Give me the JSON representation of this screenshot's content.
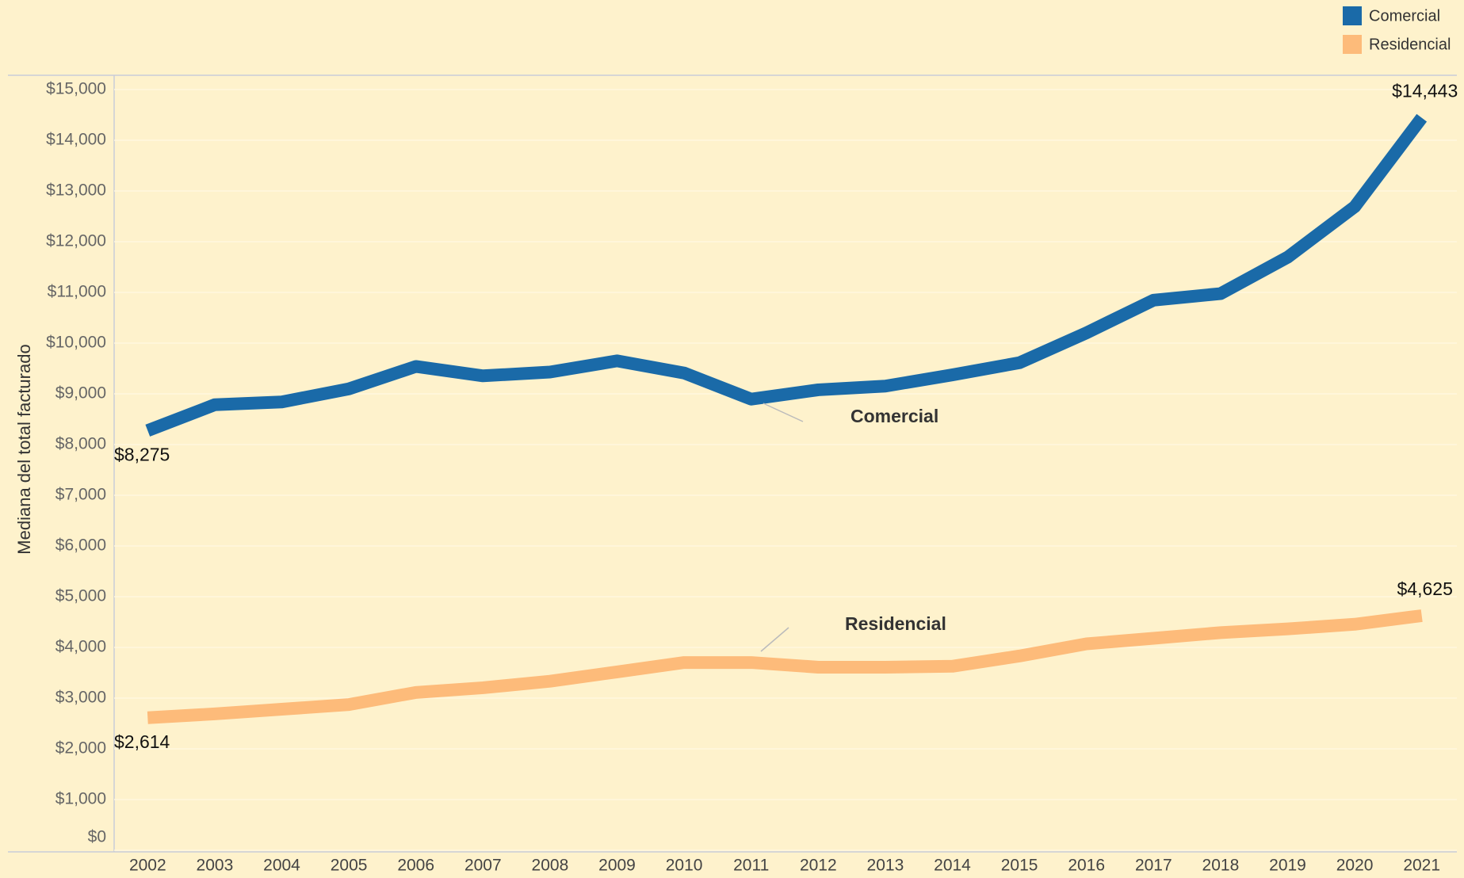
{
  "chart_data": {
    "type": "line",
    "y_label": "Mediana del total facturado",
    "categories": [
      "2002",
      "2003",
      "2004",
      "2005",
      "2006",
      "2007",
      "2008",
      "2009",
      "2010",
      "2011",
      "2012",
      "2013",
      "2014",
      "2015",
      "2016",
      "2017",
      "2018",
      "2019",
      "2020",
      "2021"
    ],
    "series": [
      {
        "name": "Comercial",
        "color": "#1a6aa8",
        "values": [
          8275,
          8785,
          8840,
          9098,
          9540,
          9355,
          9429,
          9650,
          9411,
          8895,
          9079,
          9153,
          9374,
          9613,
          10203,
          10847,
          10976,
          11694,
          12689,
          14443
        ],
        "value_labels": [
          "$8,275",
          null,
          null,
          null,
          null,
          null,
          null,
          null,
          null,
          null,
          null,
          null,
          null,
          null,
          null,
          null,
          null,
          null,
          null,
          "$14,443"
        ]
      },
      {
        "name": "Residencial",
        "color": "#fdbb7a",
        "values": [
          2614,
          2689,
          2781,
          2873,
          3112,
          3204,
          3333,
          3517,
          3702,
          3702,
          3610,
          3610,
          3628,
          3831,
          4070,
          4180,
          4291,
          4365,
          4457,
          4625
        ],
        "value_labels": [
          "$2,614",
          null,
          null,
          null,
          null,
          null,
          null,
          null,
          null,
          null,
          null,
          null,
          null,
          null,
          null,
          null,
          null,
          null,
          null,
          "$4,625"
        ]
      }
    ],
    "ylim": [
      0,
      15000
    ],
    "yticks": [
      {
        "value": 0,
        "label": "$0"
      },
      {
        "value": 1000,
        "label": "$1,000"
      },
      {
        "value": 2000,
        "label": "$2,000"
      },
      {
        "value": 3000,
        "label": "$3,000"
      },
      {
        "value": 4000,
        "label": "$4,000"
      },
      {
        "value": 5000,
        "label": "$5,000"
      },
      {
        "value": 6000,
        "label": "$6,000"
      },
      {
        "value": 7000,
        "label": "$7,000"
      },
      {
        "value": 8000,
        "label": "$8,000"
      },
      {
        "value": 9000,
        "label": "$9,000"
      },
      {
        "value": 10000,
        "label": "$10,000"
      },
      {
        "value": 11000,
        "label": "$11,000"
      },
      {
        "value": 12000,
        "label": "$12,000"
      },
      {
        "value": 13000,
        "label": "$13,000"
      },
      {
        "value": 14000,
        "label": "$14,000"
      },
      {
        "value": 15000,
        "label": "$15,000"
      }
    ],
    "grid": true,
    "legend": "top-right"
  }
}
